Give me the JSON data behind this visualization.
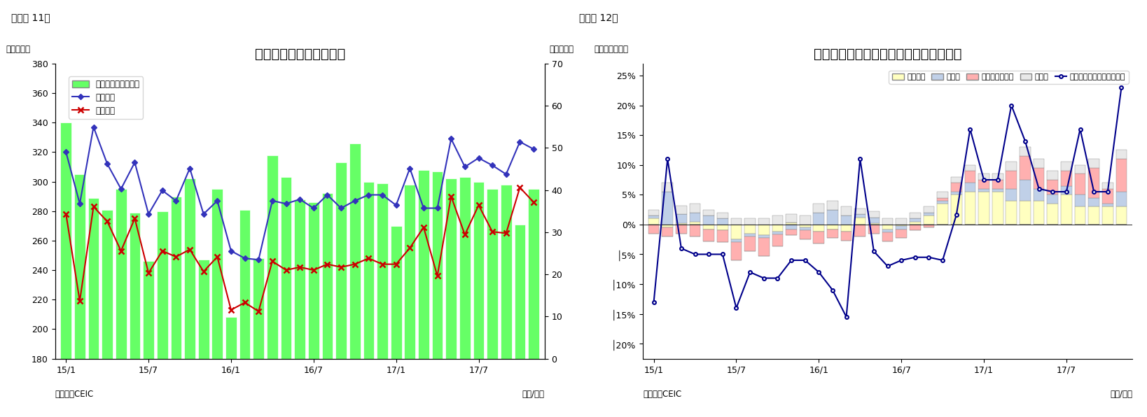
{
  "fig11": {
    "title": "シンガポール　貿易収支",
    "label_left": "（億ドル）",
    "label_right": "（億ドル）",
    "source": "（資料）CEIC",
    "year_month_label": "（年/月）",
    "figure_label": "（図表 11）",
    "ylim_left": [
      180,
      380
    ],
    "ylim_right": [
      0,
      70
    ],
    "yticks_left": [
      180,
      200,
      220,
      240,
      260,
      280,
      300,
      320,
      340,
      360,
      380
    ],
    "yticks_right": [
      0,
      10,
      20,
      30,
      40,
      50,
      60,
      70
    ],
    "xtick_labels": [
      "15/1",
      "15/7",
      "16/1",
      "16/7",
      "17/1",
      "17/7"
    ],
    "xtick_pos": [
      0,
      6,
      12,
      18,
      24,
      30
    ],
    "bar_color": "#66FF66",
    "bar_edge_color": "#ffffff",
    "line_export_color": "#3333BB",
    "line_import_color": "#CC0000",
    "legend_labels": [
      "貿易収支（右目盛）",
      "総輸出額",
      "総輸入額"
    ],
    "exports": [
      320,
      285,
      337,
      312,
      295,
      313,
      278,
      294,
      287,
      309,
      278,
      287,
      253,
      248,
      247,
      287,
      285,
      288,
      282,
      291,
      282,
      287,
      291,
      291,
      284,
      309,
      282,
      282,
      329,
      310,
      316,
      311,
      305,
      327,
      322
    ],
    "imports": [
      278,
      219,
      283,
      273,
      253,
      275,
      238,
      253,
      249,
      254,
      239,
      249,
      213,
      218,
      212,
      246,
      240,
      242,
      240,
      244,
      242,
      244,
      248,
      244,
      244,
      255,
      269,
      236,
      290,
      264,
      284,
      266,
      265,
      296,
      286
    ],
    "bar_values": [
      340,
      305,
      289,
      281,
      295,
      279,
      246,
      280,
      290,
      302,
      247,
      295,
      208,
      281,
      248,
      318,
      303,
      288,
      286,
      292,
      313,
      326,
      300,
      299,
      270,
      298,
      308,
      307,
      302,
      303,
      300,
      295,
      298,
      271,
      295
    ]
  },
  "fig12": {
    "title": "シンガポール　輸出の伸び率（品目別）",
    "label_left": "（前年同期比）",
    "source": "（資料）CEIC",
    "year_month_label": "（年/月）",
    "figure_label": "（図表 12）",
    "ylim": [
      -0.225,
      0.27
    ],
    "ytick_vals": [
      0.25,
      0.2,
      0.15,
      0.1,
      0.05,
      0.0,
      -0.05,
      -0.1,
      -0.15,
      -0.2
    ],
    "ytick_labels": [
      "25%",
      "20%",
      "15%",
      "10%",
      "5%",
      "0%",
      "│5%",
      "│10%",
      "│15%",
      "│20%"
    ],
    "xtick_labels": [
      "15/1",
      "15/7",
      "16/1",
      "16/7",
      "17/1",
      "17/7"
    ],
    "xtick_pos": [
      0,
      6,
      12,
      18,
      24,
      30
    ],
    "colors": {
      "electronics": "#FFFFC0",
      "pharma": "#C0D0E8",
      "other_chem": "#FFB0B0",
      "other": "#E8E8E8",
      "line": "#00008B"
    },
    "legend_labels": [
      "電子製品",
      "医薬品",
      "その他化学製品",
      "その他",
      "非石油輸出（再輸出除く）"
    ],
    "electronics": [
      1.0,
      -0.5,
      0.2,
      0.5,
      -0.8,
      -1.0,
      -2.5,
      -1.5,
      -1.8,
      -1.2,
      0.3,
      -0.5,
      -1.2,
      -0.8,
      -1.2,
      1.2,
      0.2,
      -0.8,
      -0.3,
      0.5,
      1.5,
      3.5,
      5.0,
      5.5,
      5.5,
      5.5,
      4.0,
      4.0,
      4.0,
      3.5,
      5.0,
      3.0,
      3.0,
      3.0,
      3.0
    ],
    "pharma": [
      0.5,
      5.5,
      1.5,
      1.5,
      1.5,
      1.0,
      -0.5,
      -0.5,
      -0.5,
      -0.5,
      -0.8,
      -0.5,
      2.0,
      2.5,
      1.5,
      0.5,
      1.0,
      -0.5,
      -0.5,
      0.5,
      0.5,
      0.5,
      0.5,
      1.5,
      0.5,
      0.5,
      2.0,
      3.5,
      2.0,
      1.5,
      1.5,
      2.0,
      1.5,
      0.5,
      2.5
    ],
    "other_chem": [
      -1.5,
      -1.5,
      -1.5,
      -2.0,
      -2.0,
      -2.0,
      -3.0,
      -2.5,
      -3.0,
      -2.0,
      -1.0,
      -1.5,
      -2.0,
      -1.5,
      -1.5,
      -2.0,
      -1.5,
      -1.5,
      -1.5,
      -1.0,
      -0.5,
      0.5,
      1.5,
      2.0,
      1.5,
      1.5,
      3.0,
      4.0,
      3.5,
      2.5,
      2.5,
      3.5,
      5.0,
      2.5,
      5.5
    ],
    "other": [
      1.0,
      1.5,
      1.5,
      1.5,
      1.0,
      1.0,
      1.0,
      1.0,
      1.0,
      1.5,
      1.5,
      1.5,
      1.5,
      1.5,
      1.5,
      1.0,
      1.0,
      1.0,
      1.0,
      1.0,
      1.0,
      1.0,
      1.0,
      1.0,
      1.0,
      1.0,
      1.5,
      1.5,
      1.5,
      1.5,
      1.5,
      1.5,
      1.5,
      1.0,
      1.5
    ],
    "non_oil_line": [
      -0.13,
      0.11,
      -0.04,
      -0.05,
      -0.05,
      -0.05,
      -0.14,
      -0.08,
      -0.09,
      -0.09,
      -0.06,
      -0.06,
      -0.08,
      -0.11,
      -0.155,
      0.11,
      -0.045,
      -0.07,
      -0.06,
      -0.055,
      -0.055,
      -0.06,
      0.016,
      0.16,
      0.075,
      0.075,
      0.2,
      0.14,
      0.06,
      0.055,
      0.055,
      0.16,
      0.055,
      0.055,
      0.23
    ]
  }
}
